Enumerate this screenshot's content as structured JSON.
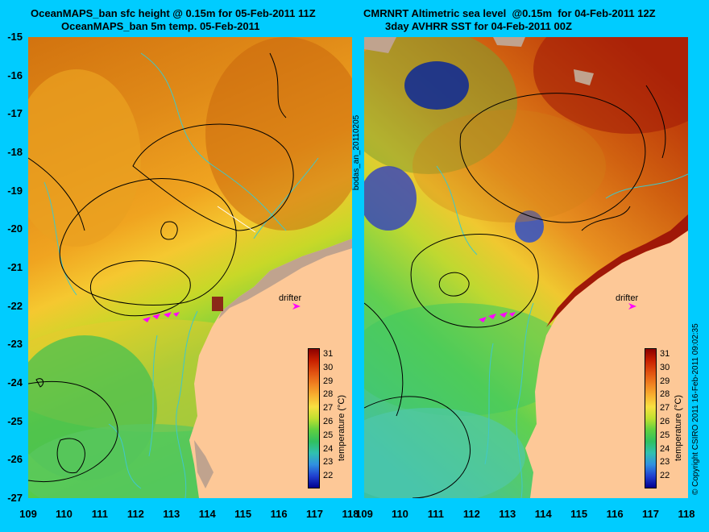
{
  "titles": {
    "left_line1": "OceanMAPS_ban sfc height @ 0.15m for 05-Feb-2011 11Z",
    "left_line2": "OceanMAPS_ban 5m temp. 05-Feb-2011",
    "right_line1": "CMRNRT Altimetric sea level  @0.15m  for 04-Feb-2011 12Z",
    "right_line2": "3day AVHRR SST for 04-Feb-2011 00Z"
  },
  "y_axis_labels": [
    "-15",
    "-16",
    "-17",
    "-18",
    "-19",
    "-20",
    "-21",
    "-22",
    "-23",
    "-24",
    "-25",
    "-26",
    "-27"
  ],
  "x_axis_labels": [
    "109",
    "110",
    "111",
    "112",
    "113",
    "114",
    "115",
    "116",
    "117",
    "118"
  ],
  "center_vertical_label": "bodas_an_20110205",
  "copyright_vertical_label": "© Copyright CSIRO 2011   16-Feb-2011 09:02:35",
  "drifter_label": "drifter",
  "colorbar": {
    "ticks": [
      "31",
      "30",
      "29",
      "28",
      "27",
      "26",
      "25",
      "24",
      "23",
      "22"
    ],
    "label": "temperature (°C)"
  },
  "colors": {
    "background": "#00ccff",
    "land": "#fdc897",
    "coast_shade": "#c0a38e",
    "contour": "#000000",
    "isobath": "#40c8c8",
    "drifter_marker": "#ff00ff"
  }
}
